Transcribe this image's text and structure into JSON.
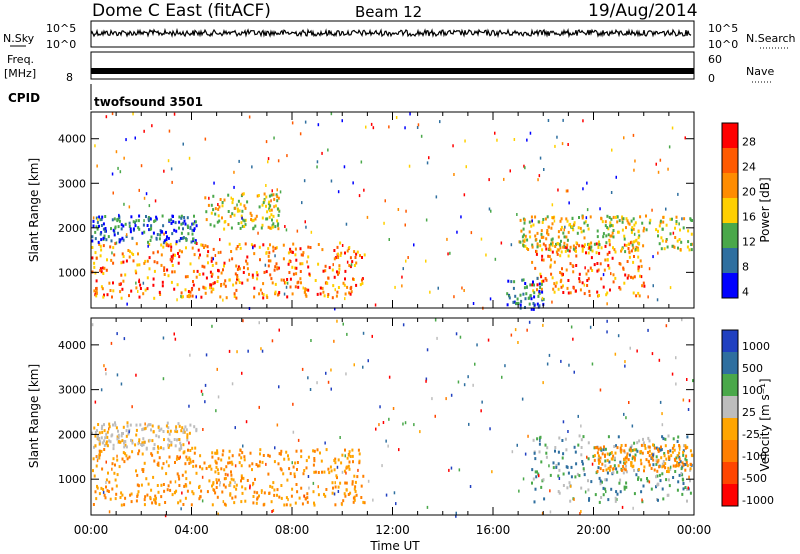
{
  "header": {
    "title": "Dome C East (fitACF)",
    "beam": "Beam 12",
    "date": "19/Aug/2014"
  },
  "panels": {
    "nsky": {
      "label": "N.Sky",
      "ytop": "10^5",
      "ybot": "10^0",
      "right_label": "N.Search",
      "right_ytop": "10^5",
      "right_ybot": "10^0"
    },
    "freq": {
      "label": "Freq.",
      "unit": "[MHz]",
      "ytop": "",
      "ybot": "8",
      "right_ytop": "60",
      "right_ybot": "0",
      "right_label": "Nave"
    },
    "cpid": {
      "label": "CPID",
      "program": "twofsound 3501"
    }
  },
  "chart_data": [
    {
      "type": "heatmap",
      "name": "power",
      "ylabel": "Slant Range [km]",
      "ylim": [
        200,
        4600
      ],
      "yticks": [
        1000,
        2000,
        3000,
        4000
      ],
      "xticks": [
        "00:00",
        "04:00",
        "08:00",
        "12:00",
        "16:00",
        "20:00",
        "00:00"
      ],
      "colorbar": {
        "label": "Power [dB]",
        "ticks": [
          "28",
          "24",
          "20",
          "16",
          "12",
          "8",
          "4"
        ],
        "colors": [
          "#ff0000",
          "#ff5a00",
          "#ff8c00",
          "#ffd000",
          "#4aa84a",
          "#2f6f9f",
          "#0000ff"
        ]
      },
      "bands": [
        {
          "t0": 0,
          "t1": 10.9,
          "r0": 450,
          "r1": 1700,
          "level": "high"
        },
        {
          "t0": 0,
          "t1": 4.2,
          "r0": 1700,
          "r1": 2300,
          "level": "low"
        },
        {
          "t0": 4.5,
          "t1": 7.5,
          "r0": 2000,
          "r1": 2800,
          "level": "mid"
        },
        {
          "t0": 17.5,
          "t1": 22,
          "r0": 500,
          "r1": 1700,
          "level": "high"
        },
        {
          "t0": 17,
          "t1": 23.9,
          "r0": 1500,
          "r1": 2300,
          "level": "mid"
        },
        {
          "t0": 16.5,
          "t1": 18,
          "r0": 200,
          "r1": 900,
          "level": "low"
        }
      ]
    },
    {
      "type": "heatmap",
      "name": "velocity",
      "ylabel": "Slant Range [km]",
      "ylim": [
        200,
        4600
      ],
      "yticks": [
        1000,
        2000,
        3000,
        4000
      ],
      "xticks": [
        "00:00",
        "04:00",
        "08:00",
        "12:00",
        "16:00",
        "20:00",
        "00:00"
      ],
      "xlabel": "Time UT",
      "colorbar": {
        "label": "Velocity [m s⁻¹]",
        "ticks": [
          "1000",
          "500",
          "100",
          "25",
          "-25",
          "-100",
          "-500",
          "-1000"
        ],
        "colors": [
          "#2040c0",
          "#2f6f9f",
          "#4aa84a",
          "#bdbdbd",
          "#ffa500",
          "#ff7f00",
          "#ff4500",
          "#ff0000"
        ]
      },
      "bands": [
        {
          "t0": 0,
          "t1": 10.9,
          "r0": 450,
          "r1": 1700,
          "level": "neg"
        },
        {
          "t0": 0,
          "t1": 4.2,
          "r0": 1700,
          "r1": 2300,
          "level": "zero"
        },
        {
          "t0": 17.5,
          "t1": 23.9,
          "r0": 500,
          "r1": 2000,
          "level": "pos"
        },
        {
          "t0": 20,
          "t1": 23.9,
          "r0": 1200,
          "r1": 1800,
          "level": "neg"
        }
      ]
    }
  ]
}
